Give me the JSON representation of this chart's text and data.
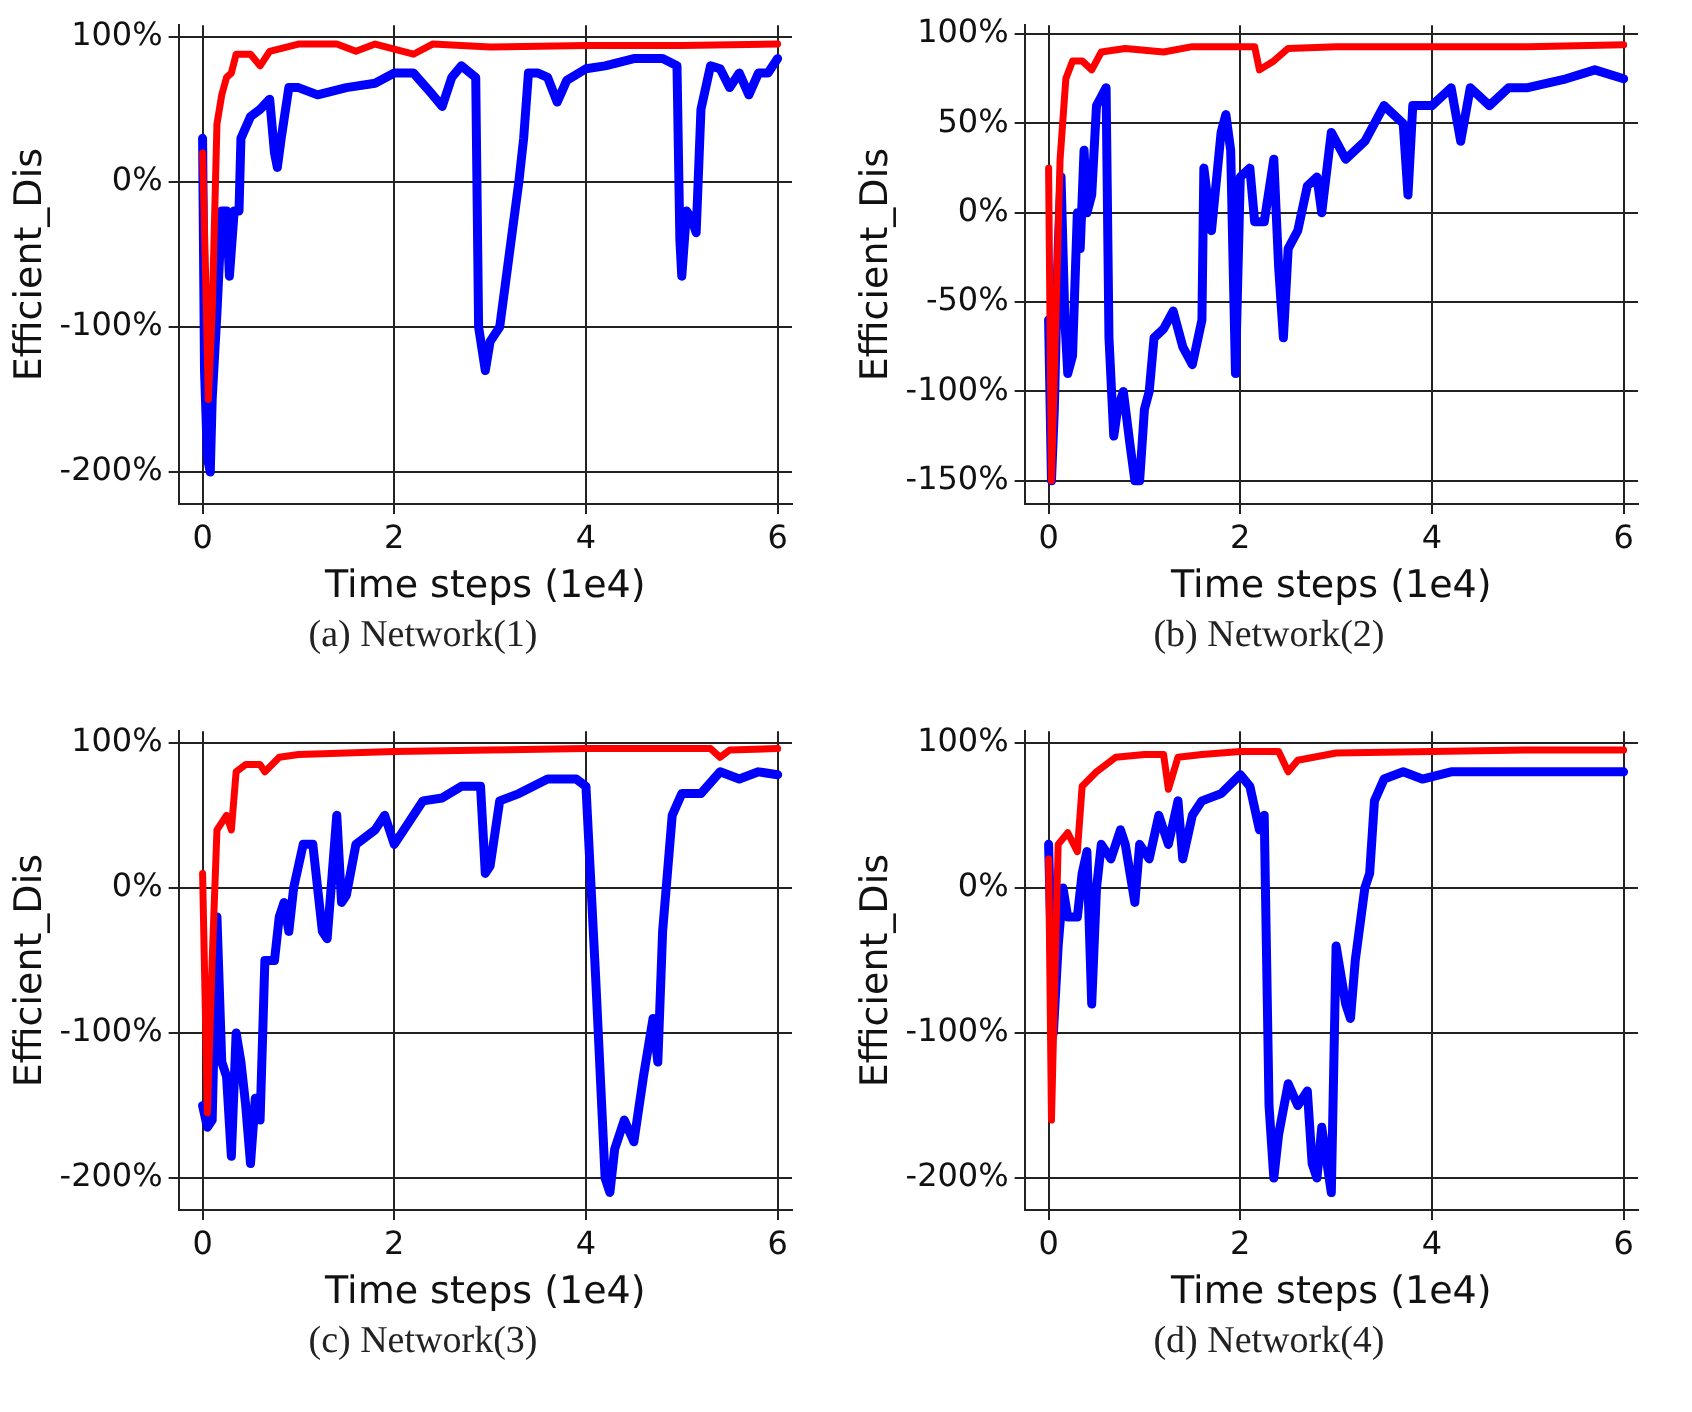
{
  "chart_data": [
    {
      "type": "line",
      "title": "(a) Network(1)",
      "xlabel": "Time steps (1e4)",
      "ylabel": "Efficient_Dis",
      "grid": true,
      "marker": "none",
      "line_style": "solid",
      "xlim": [
        -0.25,
        6.15
      ],
      "xticks": [
        0,
        2,
        4,
        6
      ],
      "ylim": [
        -222,
        108
      ],
      "yticks": [
        {
          "value": -200,
          "label": "-200%"
        },
        {
          "value": -100,
          "label": "-100%"
        },
        {
          "value": 0,
          "label": "0%"
        },
        {
          "value": 100,
          "label": "100%"
        }
      ],
      "series": [
        {
          "color": "#0000ff",
          "x": [
            0,
            0.02,
            0.05,
            0.08,
            0.1,
            0.15,
            0.2,
            0.25,
            0.28,
            0.33,
            0.38,
            0.4,
            0.5,
            0.6,
            0.7,
            0.75,
            0.78,
            0.82,
            0.9,
            1.0,
            1.2,
            1.5,
            1.8,
            2.0,
            2.2,
            2.4,
            2.5,
            2.6,
            2.7,
            2.85,
            2.88,
            2.95,
            3.0,
            3.1,
            3.2,
            3.3,
            3.35,
            3.4,
            3.5,
            3.6,
            3.7,
            3.8,
            4.0,
            4.2,
            4.5,
            4.8,
            4.95,
            4.98,
            5.0,
            5.05,
            5.1,
            5.15,
            5.2,
            5.3,
            5.4,
            5.5,
            5.6,
            5.7,
            5.8,
            5.9,
            6.0
          ],
          "values": [
            30,
            -130,
            -190,
            -200,
            -150,
            -90,
            -20,
            -20,
            -65,
            -20,
            -20,
            30,
            45,
            50,
            57,
            20,
            10,
            30,
            65,
            65,
            60,
            65,
            68,
            75,
            75,
            60,
            52,
            72,
            80,
            72,
            -100,
            -130,
            -110,
            -100,
            -50,
            0,
            30,
            75,
            75,
            72,
            55,
            70,
            78,
            80,
            85,
            85,
            80,
            -40,
            -65,
            -20,
            -25,
            -35,
            50,
            80,
            78,
            65,
            75,
            60,
            75,
            75,
            85
          ]
        },
        {
          "color": "#ff0000",
          "x": [
            0,
            0.03,
            0.06,
            0.1,
            0.15,
            0.2,
            0.25,
            0.3,
            0.35,
            0.5,
            0.6,
            0.7,
            1.0,
            1.4,
            1.6,
            1.8,
            2.2,
            2.4,
            3,
            4,
            5,
            6
          ],
          "values": [
            20,
            -60,
            -150,
            -90,
            40,
            60,
            72,
            75,
            88,
            88,
            80,
            90,
            95,
            95,
            90,
            95,
            88,
            95,
            93,
            94,
            94,
            95
          ]
        }
      ]
    },
    {
      "type": "line",
      "title": "(b) Network(2)",
      "xlabel": "Time steps (1e4)",
      "ylabel": "Efficient_Dis",
      "grid": true,
      "marker": "none",
      "line_style": "solid",
      "xlim": [
        -0.25,
        6.15
      ],
      "xticks": [
        0,
        2,
        4,
        6
      ],
      "ylim": [
        -163,
        105
      ],
      "yticks": [
        {
          "value": -150,
          "label": "-150%"
        },
        {
          "value": -100,
          "label": "-100%"
        },
        {
          "value": -50,
          "label": "-50%"
        },
        {
          "value": 0,
          "label": "0%"
        },
        {
          "value": 50,
          "label": "50%"
        },
        {
          "value": 100,
          "label": "100%"
        }
      ],
      "series": [
        {
          "color": "#0000ff",
          "x": [
            0,
            0.03,
            0.06,
            0.1,
            0.13,
            0.17,
            0.2,
            0.25,
            0.3,
            0.33,
            0.37,
            0.4,
            0.45,
            0.5,
            0.55,
            0.6,
            0.63,
            0.68,
            0.72,
            0.78,
            0.85,
            0.9,
            0.95,
            1.0,
            1.05,
            1.1,
            1.2,
            1.3,
            1.4,
            1.5,
            1.6,
            1.62,
            1.7,
            1.8,
            1.85,
            1.9,
            1.95,
            2.0,
            2.1,
            2.15,
            2.25,
            2.35,
            2.4,
            2.45,
            2.5,
            2.6,
            2.7,
            2.8,
            2.85,
            2.95,
            3.1,
            3.3,
            3.5,
            3.7,
            3.75,
            3.8,
            4.0,
            4.2,
            4.3,
            4.4,
            4.6,
            4.8,
            5.0,
            5.4,
            5.7,
            6.0
          ],
          "values": [
            -60,
            -150,
            -110,
            -20,
            20,
            -60,
            -90,
            -80,
            0,
            -20,
            35,
            0,
            10,
            60,
            65,
            70,
            -70,
            -125,
            -110,
            -100,
            -130,
            -150,
            -150,
            -110,
            -100,
            -70,
            -65,
            -55,
            -75,
            -85,
            -60,
            25,
            -10,
            45,
            55,
            35,
            -90,
            20,
            25,
            -5,
            -5,
            30,
            -30,
            -70,
            -20,
            -10,
            15,
            20,
            0,
            45,
            30,
            40,
            60,
            50,
            10,
            60,
            60,
            70,
            40,
            70,
            60,
            70,
            70,
            75,
            80,
            75
          ]
        },
        {
          "color": "#ff0000",
          "x": [
            0,
            0.03,
            0.08,
            0.12,
            0.18,
            0.25,
            0.35,
            0.45,
            0.55,
            0.8,
            1.2,
            1.5,
            2.0,
            2.15,
            2.2,
            2.35,
            2.5,
            3,
            4,
            5,
            6
          ],
          "values": [
            25,
            -150,
            -50,
            30,
            75,
            85,
            85,
            80,
            90,
            92,
            90,
            93,
            93,
            93,
            80,
            85,
            92,
            93,
            93,
            93,
            94
          ]
        }
      ]
    },
    {
      "type": "line",
      "title": "(c) Network(3)",
      "xlabel": "Time steps (1e4)",
      "ylabel": "Efficient_Dis",
      "grid": true,
      "marker": "none",
      "line_style": "solid",
      "xlim": [
        -0.25,
        6.15
      ],
      "xticks": [
        0,
        2,
        4,
        6
      ],
      "ylim": [
        -222,
        108
      ],
      "yticks": [
        {
          "value": -200,
          "label": "-200%"
        },
        {
          "value": -100,
          "label": "-100%"
        },
        {
          "value": 0,
          "label": "0%"
        },
        {
          "value": 100,
          "label": "100%"
        }
      ],
      "series": [
        {
          "color": "#0000ff",
          "x": [
            0,
            0.05,
            0.1,
            0.15,
            0.2,
            0.25,
            0.3,
            0.35,
            0.4,
            0.45,
            0.5,
            0.55,
            0.6,
            0.65,
            0.75,
            0.8,
            0.85,
            0.9,
            0.95,
            1.05,
            1.15,
            1.25,
            1.3,
            1.4,
            1.45,
            1.5,
            1.6,
            1.8,
            1.9,
            2.0,
            2.1,
            2.3,
            2.5,
            2.7,
            2.9,
            2.95,
            3.0,
            3.1,
            3.3,
            3.6,
            3.9,
            4.0,
            4.1,
            4.2,
            4.25,
            4.3,
            4.4,
            4.5,
            4.6,
            4.7,
            4.75,
            4.8,
            4.9,
            5.0,
            5.2,
            5.4,
            5.6,
            5.8,
            6.0
          ],
          "values": [
            -150,
            -165,
            -160,
            -20,
            -120,
            -130,
            -185,
            -100,
            -120,
            -150,
            -190,
            -145,
            -160,
            -50,
            -50,
            -20,
            -10,
            -30,
            0,
            30,
            30,
            -30,
            -35,
            50,
            -10,
            -5,
            30,
            40,
            50,
            30,
            40,
            60,
            62,
            70,
            70,
            10,
            15,
            60,
            65,
            75,
            75,
            70,
            -60,
            -200,
            -210,
            -180,
            -160,
            -175,
            -130,
            -90,
            -120,
            -30,
            50,
            65,
            65,
            80,
            75,
            80,
            78
          ]
        },
        {
          "color": "#ff0000",
          "x": [
            0,
            0.05,
            0.1,
            0.15,
            0.25,
            0.3,
            0.35,
            0.45,
            0.6,
            0.65,
            0.8,
            1.0,
            2.0,
            3.0,
            4.0,
            5.3,
            5.4,
            5.5,
            6.0
          ],
          "values": [
            10,
            -155,
            -50,
            40,
            50,
            40,
            80,
            85,
            85,
            80,
            90,
            92,
            94,
            95,
            96,
            96,
            90,
            95,
            96
          ]
        }
      ]
    },
    {
      "type": "line",
      "title": "(d) Network(4)",
      "xlabel": "Time steps (1e4)",
      "ylabel": "Efficient_Dis",
      "grid": true,
      "marker": "none",
      "line_style": "solid",
      "xlim": [
        -0.25,
        6.15
      ],
      "xticks": [
        0,
        2,
        4,
        6
      ],
      "ylim": [
        -222,
        108
      ],
      "yticks": [
        {
          "value": -200,
          "label": "-200%"
        },
        {
          "value": -100,
          "label": "-100%"
        },
        {
          "value": 0,
          "label": "0%"
        },
        {
          "value": 100,
          "label": "100%"
        }
      ],
      "series": [
        {
          "color": "#0000ff",
          "x": [
            0,
            0.05,
            0.1,
            0.15,
            0.2,
            0.3,
            0.35,
            0.4,
            0.45,
            0.5,
            0.55,
            0.65,
            0.75,
            0.8,
            0.9,
            0.95,
            1.05,
            1.15,
            1.25,
            1.35,
            1.4,
            1.5,
            1.6,
            1.8,
            2.0,
            2.1,
            2.2,
            2.25,
            2.3,
            2.35,
            2.4,
            2.5,
            2.6,
            2.7,
            2.75,
            2.8,
            2.85,
            2.95,
            3.0,
            3.05,
            3.1,
            3.15,
            3.2,
            3.3,
            3.35,
            3.4,
            3.5,
            3.7,
            3.9,
            4.2,
            4.5,
            5.0,
            5.5,
            6.0
          ],
          "values": [
            30,
            -100,
            -40,
            0,
            -20,
            -20,
            10,
            25,
            -80,
            0,
            30,
            20,
            40,
            30,
            -10,
            30,
            20,
            50,
            30,
            60,
            20,
            50,
            60,
            65,
            78,
            70,
            40,
            50,
            -150,
            -200,
            -170,
            -135,
            -150,
            -140,
            -190,
            -200,
            -165,
            -210,
            -40,
            -60,
            -80,
            -90,
            -50,
            0,
            10,
            60,
            75,
            80,
            75,
            80,
            80,
            80,
            80,
            80
          ]
        },
        {
          "color": "#ff0000",
          "x": [
            0,
            0.03,
            0.07,
            0.1,
            0.2,
            0.3,
            0.35,
            0.5,
            0.7,
            1.0,
            1.2,
            1.25,
            1.35,
            1.6,
            2.0,
            2.4,
            2.5,
            2.6,
            3.0,
            4.0,
            5.0,
            6.0
          ],
          "values": [
            20,
            -160,
            -50,
            30,
            38,
            25,
            70,
            80,
            90,
            92,
            92,
            68,
            90,
            92,
            94,
            94,
            80,
            88,
            93,
            94,
            95,
            95
          ]
        }
      ]
    }
  ]
}
